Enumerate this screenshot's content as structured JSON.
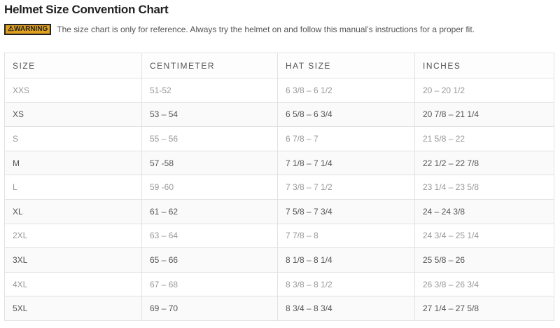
{
  "title": "Helmet Size Convention Chart",
  "warning": {
    "badge": "⚠WARNING",
    "text": "The size chart is only for reference. Always try the helmet on and follow this manual’s instructions for a proper fit.",
    "badge_color": "#e0a020"
  },
  "table": {
    "headers": [
      "SIZE",
      "CENTIMETER",
      "HAT SIZE",
      "INCHES"
    ],
    "rows": [
      [
        "XXS",
        "51-52",
        "6 3/8 – 6 1/2",
        "20 – 20 1/2"
      ],
      [
        "XS",
        "53 – 54",
        "6 5/8 – 6 3/4",
        "20 7/8 – 21 1/4"
      ],
      [
        "S",
        "55 – 56",
        "6 7/8 – 7",
        "21 5/8 – 22"
      ],
      [
        "M",
        "57 -58",
        "7 1/8 – 7 1/4",
        "22 1/2 – 22 7/8"
      ],
      [
        "L",
        "59 -60",
        "7 3/8 – 7 1/2",
        "23 1/4 – 23 5/8"
      ],
      [
        "XL",
        "61 – 62",
        "7 5/8 – 7 3/4",
        "24 – 24 3/8"
      ],
      [
        "2XL",
        "63 – 64",
        "7 7/8 – 8",
        "24 3/4 – 25 1/4"
      ],
      [
        "3XL",
        "65 – 66",
        "8 1/8 – 8 1/4",
        "25 5/8 – 26"
      ],
      [
        "4XL",
        "67 – 68",
        "8 3/8 – 8 1/2",
        "26 3/8 – 26 3/4"
      ],
      [
        "5XL",
        "69 – 70",
        "8 3/4 – 8 3/4",
        "27 1/4 – 27 5/8"
      ]
    ]
  }
}
